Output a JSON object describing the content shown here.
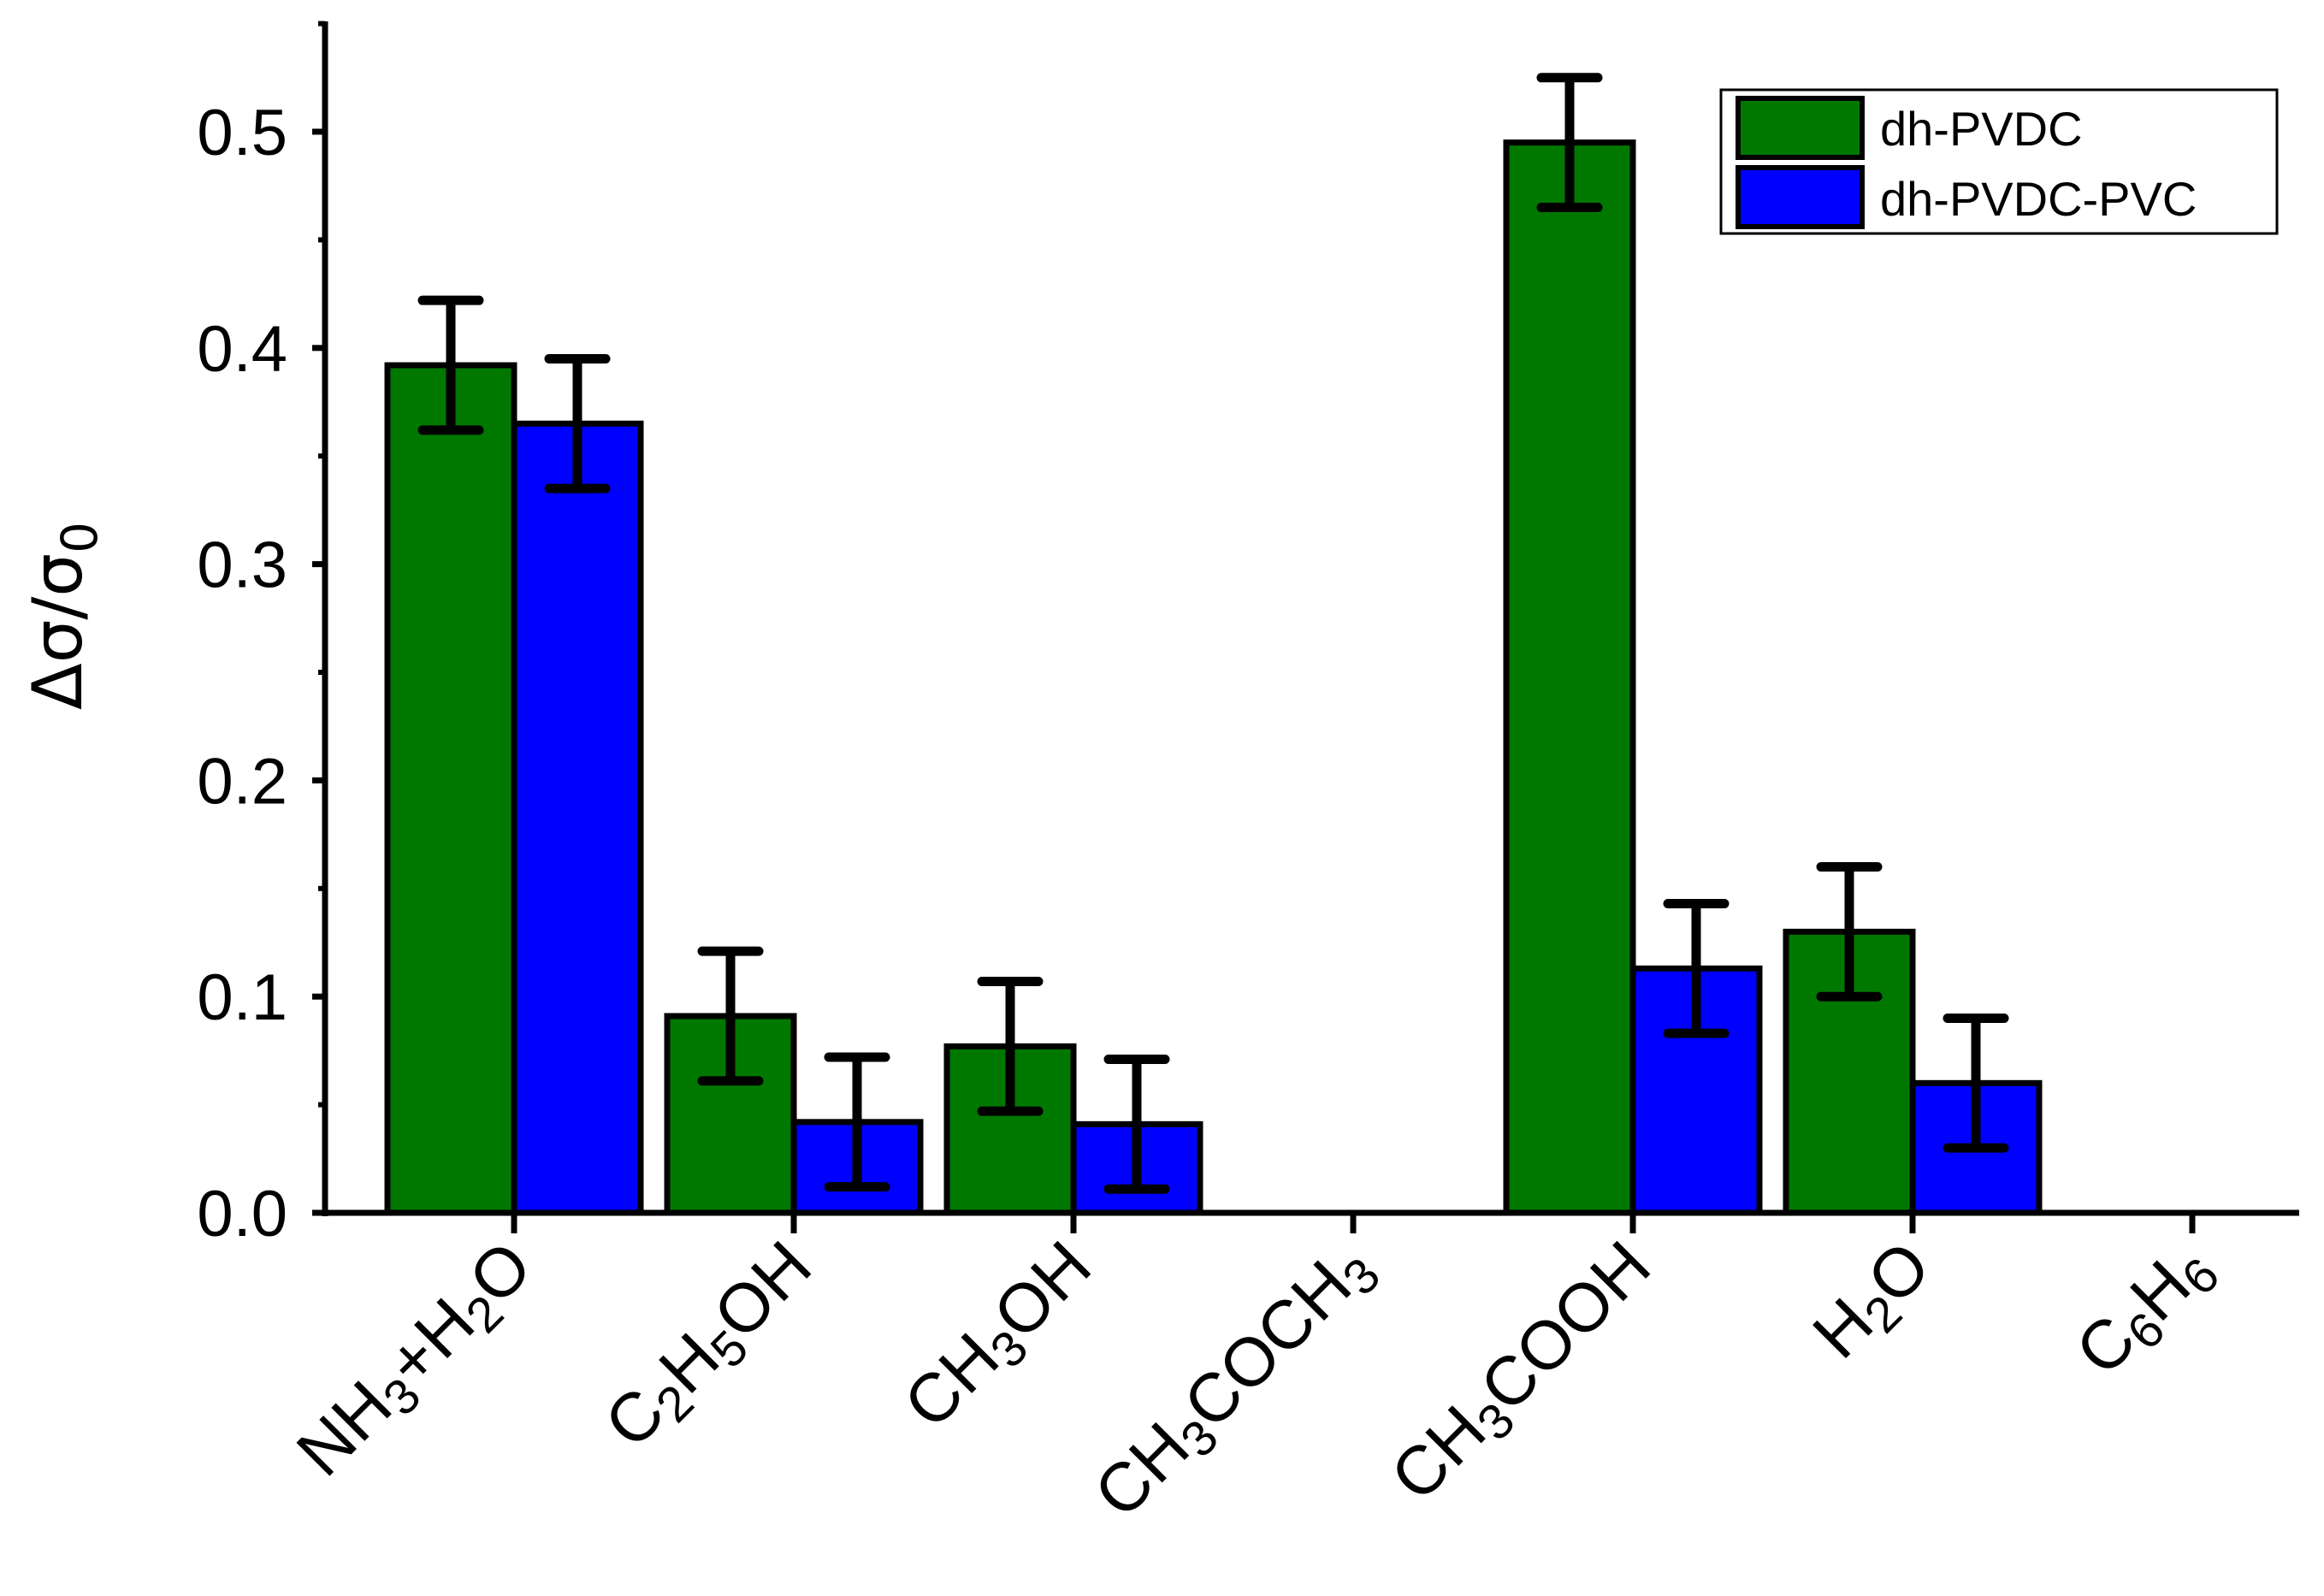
{
  "chart_data": {
    "type": "bar",
    "title": "",
    "xlabel": "",
    "ylabel": "Δσ/σ0",
    "ylabel_parts": {
      "main": "Δσ/σ",
      "subscript": "0"
    },
    "ylim": [
      0,
      0.55
    ],
    "yticks": [
      "0.0",
      "0.1",
      "0.2",
      "0.3",
      "0.4",
      "0.5"
    ],
    "ytick_values": [
      0,
      0.1,
      0.2,
      0.3,
      0.4,
      0.5
    ],
    "categories": [
      "NH3+H2O",
      "C2H5OH",
      "CH3OH",
      "CH3COCH3",
      "CH3COOH",
      "H2O",
      "C6H6"
    ],
    "category_parts": [
      [
        [
          "NH",
          false
        ],
        [
          "3",
          true
        ],
        [
          "+H",
          false
        ],
        [
          "2",
          true
        ],
        [
          "O",
          false
        ]
      ],
      [
        [
          "C",
          false
        ],
        [
          "2",
          true
        ],
        [
          "H",
          false
        ],
        [
          "5",
          true
        ],
        [
          "OH",
          false
        ]
      ],
      [
        [
          "CH",
          false
        ],
        [
          "3",
          true
        ],
        [
          "OH",
          false
        ]
      ],
      [
        [
          "CH",
          false
        ],
        [
          "3",
          true
        ],
        [
          "COCH",
          false
        ],
        [
          "3",
          true
        ]
      ],
      [
        [
          "CH",
          false
        ],
        [
          "3",
          true
        ],
        [
          "COOH",
          false
        ]
      ],
      [
        [
          "H",
          false
        ],
        [
          "2",
          true
        ],
        [
          "O",
          false
        ]
      ],
      [
        [
          "C",
          false
        ],
        [
          "6",
          true
        ],
        [
          "H",
          false
        ],
        [
          "6",
          true
        ]
      ]
    ],
    "series": [
      {
        "name": "dh-PVDC",
        "color": "#007800",
        "values": [
          0.392,
          0.091,
          0.077,
          null,
          0.495,
          0.13,
          null
        ],
        "errors": [
          0.03,
          0.03,
          0.03,
          null,
          0.03,
          0.03,
          null
        ]
      },
      {
        "name": "dh-PVDC-PVC",
        "color": "#0000ff",
        "values": [
          0.365,
          0.042,
          0.041,
          null,
          0.113,
          0.06,
          null
        ],
        "errors": [
          0.03,
          0.03,
          0.03,
          null,
          0.03,
          0.03,
          null
        ]
      }
    ],
    "legend_position": "top-right",
    "grid": false
  }
}
